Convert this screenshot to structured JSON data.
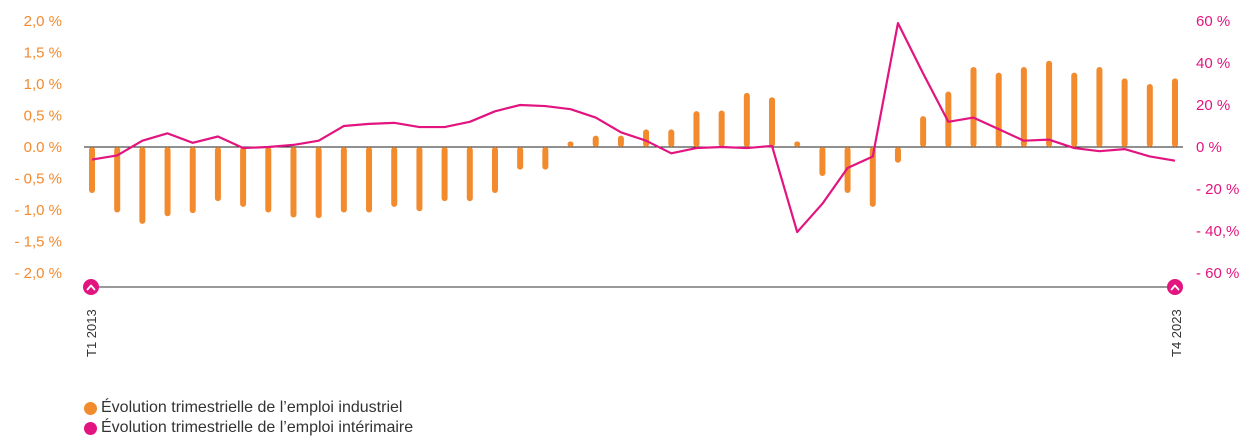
{
  "chart_data": {
    "type": "bar+line",
    "x_start_label": "T1 2013",
    "x_end_label": "T4 2023",
    "left_axis": {
      "ticks": [
        "2,0 %",
        "1,5 %",
        "1,0 %",
        "0,5 %",
        "0.0 %",
        "- 0,5 %",
        "- 1,0 %",
        "- 1,5 %",
        "- 2,0 %"
      ],
      "range": [
        -2.0,
        2.0
      ]
    },
    "right_axis": {
      "ticks": [
        "60 %",
        "40 %",
        "20 %",
        "0 %",
        "- 20 %",
        "- 40,%",
        "- 60 %"
      ],
      "range": [
        -60,
        60
      ]
    },
    "series": [
      {
        "name": "Évolution trimestrielle de l’emploi industriel",
        "type": "bar",
        "axis": "left",
        "color": "#f28a2e",
        "values": [
          -0.73,
          -1.04,
          -1.22,
          -1.1,
          -1.05,
          -0.86,
          -0.95,
          -1.04,
          -1.12,
          -1.13,
          -1.04,
          -1.04,
          -0.95,
          -1.02,
          -0.86,
          -0.86,
          -0.73,
          -0.36,
          -0.36,
          0.09,
          0.18,
          0.18,
          0.28,
          0.28,
          0.57,
          0.58,
          0.86,
          0.79,
          0.09,
          -0.46,
          -0.73,
          -0.95,
          -0.25,
          0.49,
          0.88,
          1.27,
          1.18,
          1.27,
          1.37,
          1.18,
          1.27,
          1.09,
          1.0,
          1.09
        ]
      },
      {
        "name": "Évolution trimestrielle de l’emploi intérimaire",
        "type": "line",
        "axis": "right",
        "color": "#e2147f",
        "values": [
          -6,
          -4,
          3,
          6.5,
          2,
          5,
          -0.5,
          0,
          1,
          3,
          10,
          11,
          11.5,
          9.5,
          9.5,
          12,
          17,
          20,
          19.5,
          18,
          14,
          7,
          3,
          -3,
          -0.5,
          0,
          -0.5,
          0.5,
          -40.5,
          -27,
          -10,
          -4.5,
          59,
          35,
          12,
          14,
          8.5,
          3,
          3.5,
          -0.5,
          -2,
          -1,
          -4.5,
          -6.5
        ]
      }
    ]
  }
}
